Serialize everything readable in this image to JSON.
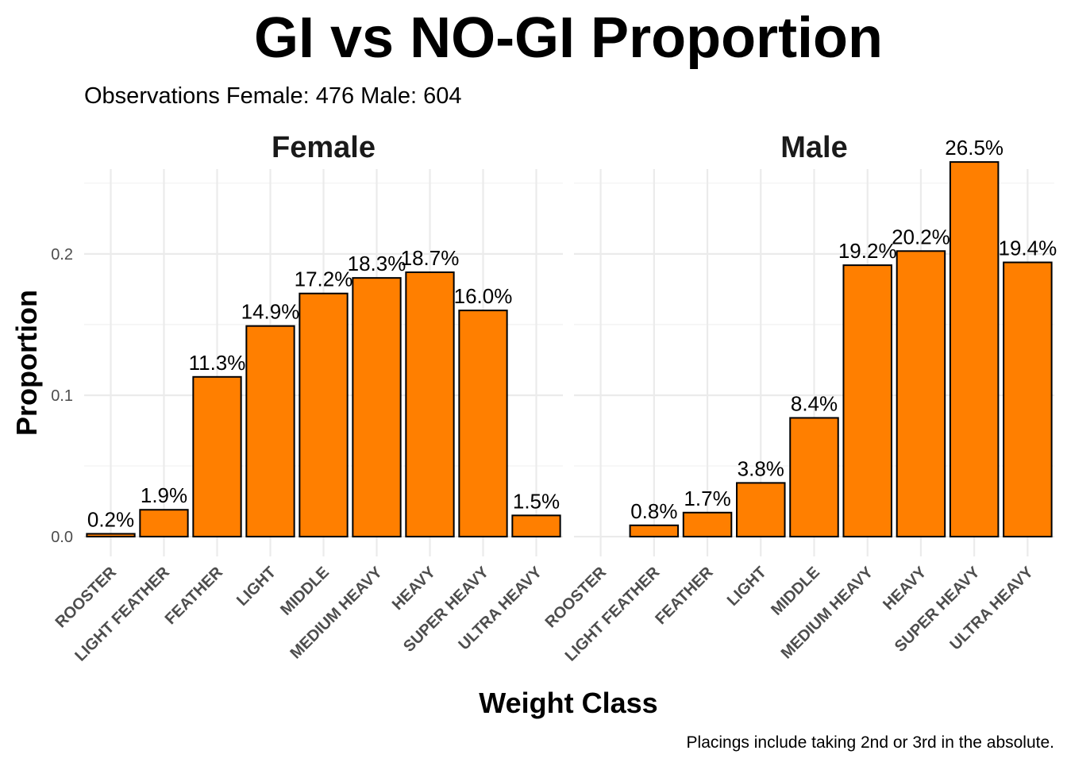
{
  "chart_data": {
    "type": "bar",
    "title": "GI vs NO-GI Proportion",
    "subtitle": "Observations  Female: 476  Male: 604",
    "caption": "Placings include taking 2nd or 3rd in the absolute.",
    "xlabel": "Weight Class",
    "ylabel": "Proportion",
    "categories": [
      "ROOSTER",
      "LIGHT FEATHER",
      "FEATHER",
      "LIGHT",
      "MIDDLE",
      "MEDIUM HEAVY",
      "HEAVY",
      "SUPER HEAVY",
      "ULTRA HEAVY"
    ],
    "ylim": [
      -0.014,
      0.26
    ],
    "yticks": [
      0.0,
      0.1,
      0.2
    ],
    "ytick_labels": [
      "0.0",
      "0.1",
      "0.2"
    ],
    "grid": true,
    "bar_color": "#FF7F00",
    "bar_outline": "#000000",
    "panels": [
      {
        "name": "Female",
        "values": [
          0.002,
          0.019,
          0.113,
          0.149,
          0.172,
          0.183,
          0.187,
          0.16,
          0.015
        ],
        "labels": [
          "0.2%",
          "1.9%",
          "11.3%",
          "14.9%",
          "17.2%",
          "18.3%",
          "18.7%",
          "16.0%",
          "1.5%"
        ]
      },
      {
        "name": "Male",
        "values": [
          null,
          0.008,
          0.017,
          0.038,
          0.084,
          0.192,
          0.202,
          0.265,
          0.194
        ],
        "labels": [
          "",
          "0.8%",
          "1.7%",
          "3.8%",
          "8.4%",
          "19.2%",
          "20.2%",
          "26.5%",
          "19.4%"
        ]
      }
    ]
  }
}
